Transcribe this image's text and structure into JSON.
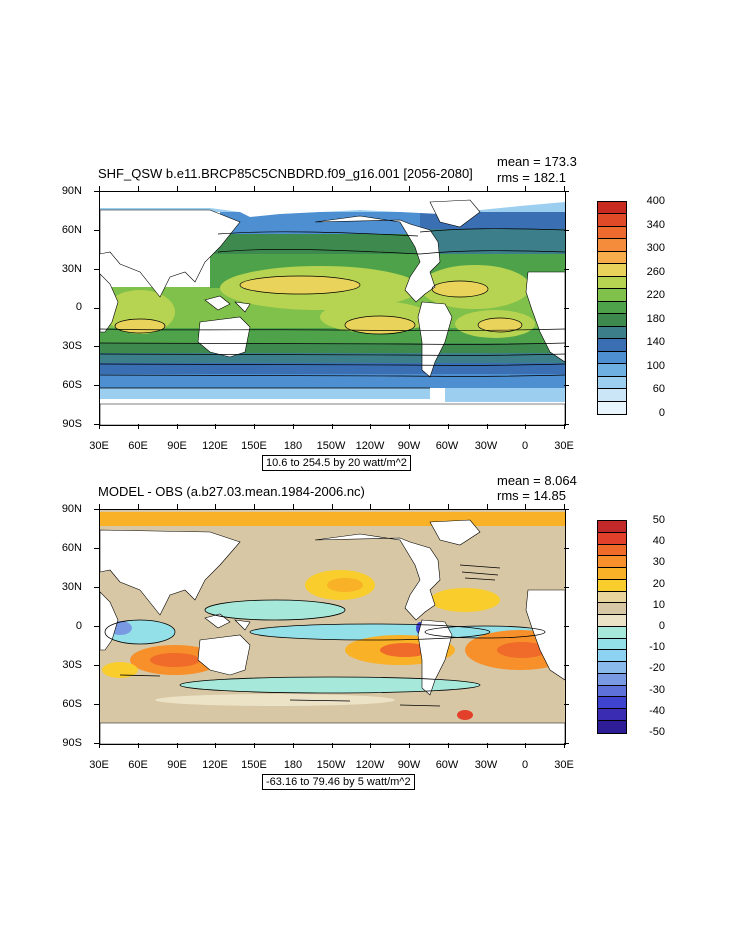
{
  "panels": [
    {
      "title": "SHF_QSW b.e11.BRCP85C5CNBDRD.f09_g16.001 [2056-2080]",
      "mean": "mean = 173.3",
      "rms": "rms = 182.1",
      "range_label": "10.6 to 254.5 by 20 watt/m^2",
      "colorbar_labels": [
        "400",
        "340",
        "300",
        "260",
        "220",
        "180",
        "140",
        "100",
        "60",
        "0"
      ],
      "colorbar_colors": [
        "#c92a1f",
        "#e04a27",
        "#ee6a2e",
        "#f48c3b",
        "#f7ad4a",
        "#e9d35a",
        "#b6d351",
        "#7fc14a",
        "#4ea34a",
        "#3e8a4e",
        "#3c7f8a",
        "#3a6fb3",
        "#4d8fd0",
        "#6fb0e3",
        "#9ccfef",
        "#cbe7f7",
        "#e8f5fc"
      ]
    },
    {
      "title": "MODEL - OBS (a.b27.03.mean.1984-2006.nc)",
      "mean": "mean = 8.064",
      "rms": "rms = 14.85",
      "range_label": "-63.16 to 79.46 by 5 watt/m^2",
      "colorbar_labels": [
        "50",
        "40",
        "30",
        "20",
        "10",
        "0",
        "-10",
        "-20",
        "-30",
        "-40",
        "-50"
      ],
      "colorbar_colors": [
        "#c0282a",
        "#e2402b",
        "#f06a2a",
        "#f7902a",
        "#f9b127",
        "#f8cd2c",
        "#e9d49d",
        "#d8c7a4",
        "#ece2c6",
        "#a6e8d9",
        "#94e0e8",
        "#8dd3f1",
        "#8ab9ec",
        "#7a99e3",
        "#5e70da",
        "#3e44d0",
        "#3a2db4",
        "#2d1e98"
      ]
    }
  ],
  "axes": {
    "y_ticks": [
      "90N",
      "60N",
      "30N",
      "0",
      "30S",
      "60S",
      "90S"
    ],
    "x_ticks": [
      "30E",
      "60E",
      "90E",
      "120E",
      "150E",
      "180",
      "150W",
      "120W",
      "90W",
      "60W",
      "30W",
      "0",
      "30E"
    ]
  },
  "colors": {
    "land": "#ffffff",
    "frame": "#000000"
  }
}
